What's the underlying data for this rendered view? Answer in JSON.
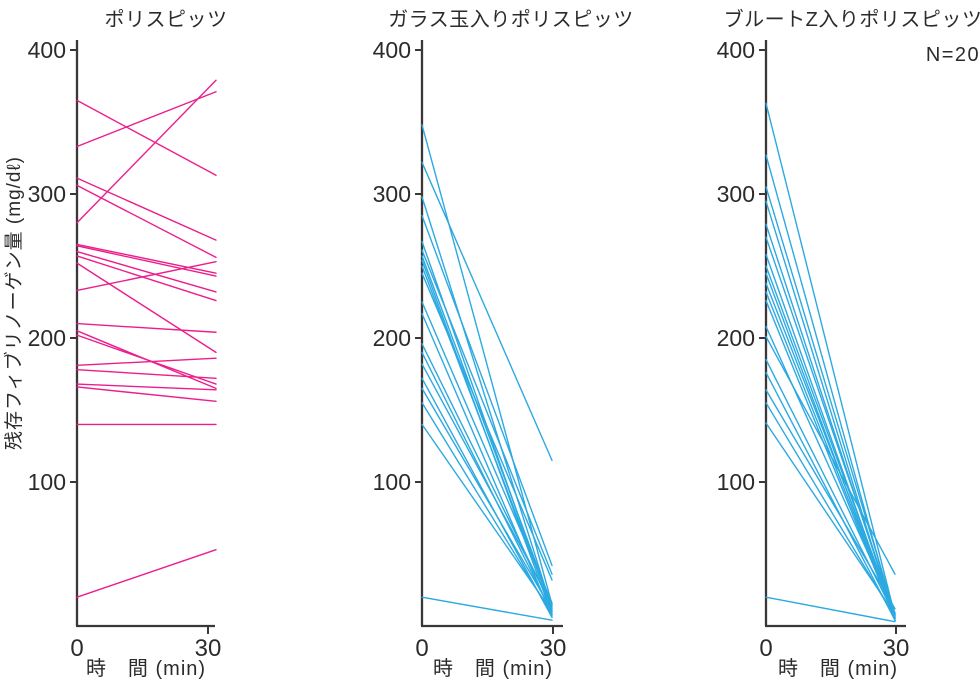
{
  "figure": {
    "ylabel": "残存フィブリノーゲン量 (mg/dℓ)",
    "xlabel": "時　間 (min)",
    "annotation": "N=20",
    "yticks": [
      400,
      300,
      200,
      100
    ],
    "xticks": [
      0,
      30
    ],
    "ylim": [
      0,
      400
    ],
    "xlim": [
      0,
      30
    ],
    "text_color": "#2d2a2b",
    "axis_color": "#3b3738"
  },
  "chart_data": [
    {
      "type": "line",
      "title": "ポリスピッツ",
      "color": "#EC1E8C",
      "x": [
        0,
        30
      ],
      "xlabel": "時　間 (min)",
      "ylabel": "残存フィブリノーゲン量 (mg/dℓ)",
      "ylim": [
        0,
        400
      ],
      "grid": false,
      "lines": [
        [
          365,
          313
        ],
        [
          333,
          371
        ],
        [
          280,
          379
        ],
        [
          311,
          268
        ],
        [
          306,
          256
        ],
        [
          265,
          245
        ],
        [
          264,
          243
        ],
        [
          260,
          232
        ],
        [
          257,
          226
        ],
        [
          233,
          253
        ],
        [
          252,
          190
        ],
        [
          210,
          204
        ],
        [
          205,
          165
        ],
        [
          202,
          168
        ],
        [
          181,
          186
        ],
        [
          178,
          172
        ],
        [
          168,
          164
        ],
        [
          166,
          156
        ],
        [
          140,
          140
        ],
        [
          20,
          53
        ]
      ]
    },
    {
      "type": "line",
      "title": "ガラス玉入りポリスピッツ",
      "color": "#2CA9E1",
      "x": [
        0,
        30
      ],
      "xlabel": "時　間 (min)",
      "ylabel": "残存フィブリノーゲン量 (mg/dℓ)",
      "ylim": [
        0,
        400
      ],
      "grid": false,
      "lines": [
        [
          348,
          15
        ],
        [
          322,
          115
        ],
        [
          298,
          12
        ],
        [
          285,
          42
        ],
        [
          267,
          10
        ],
        [
          261,
          36
        ],
        [
          257,
          14
        ],
        [
          254,
          8
        ],
        [
          250,
          12
        ],
        [
          245,
          32
        ],
        [
          225,
          16
        ],
        [
          217,
          7
        ],
        [
          196,
          13
        ],
        [
          190,
          9
        ],
        [
          182,
          15
        ],
        [
          172,
          6
        ],
        [
          165,
          11
        ],
        [
          155,
          8
        ],
        [
          140,
          10
        ],
        [
          20,
          4
        ]
      ]
    },
    {
      "type": "line",
      "title": "ブルートZ入りポリスピッツ",
      "color": "#2CA9E1",
      "x": [
        0,
        30
      ],
      "xlabel": "時　間 (min)",
      "ylabel": "残存フィブリノーゲン量 (mg/dℓ)",
      "ylim": [
        0,
        400
      ],
      "grid": false,
      "lines": [
        [
          363,
          7
        ],
        [
          327,
          5
        ],
        [
          305,
          8
        ],
        [
          295,
          4
        ],
        [
          279,
          6
        ],
        [
          270,
          9
        ],
        [
          258,
          5
        ],
        [
          250,
          7
        ],
        [
          245,
          4
        ],
        [
          238,
          8
        ],
        [
          232,
          6
        ],
        [
          226,
          5
        ],
        [
          208,
          9
        ],
        [
          201,
          36
        ],
        [
          185,
          7
        ],
        [
          176,
          4
        ],
        [
          164,
          12
        ],
        [
          155,
          6
        ],
        [
          141,
          8
        ],
        [
          20,
          3
        ]
      ]
    }
  ]
}
